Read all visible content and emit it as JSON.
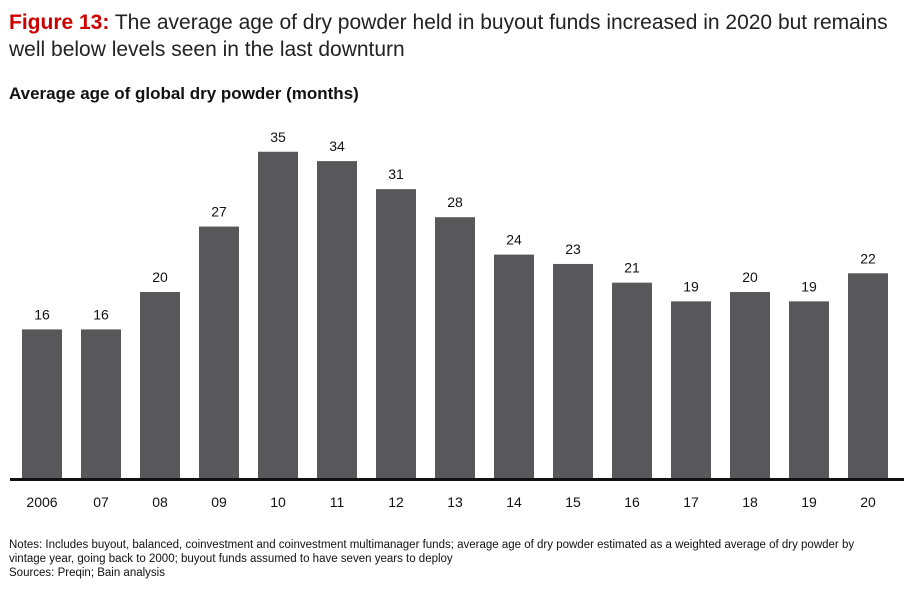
{
  "figure": {
    "prefix": "Figure 13:",
    "title": "The average age of dry powder held in buyout funds increased in 2020 but remains well below levels seen in the last downturn"
  },
  "chart_data": {
    "type": "bar",
    "title": "Average age of global dry powder (months)",
    "categories": [
      "2006",
      "07",
      "08",
      "09",
      "10",
      "11",
      "12",
      "13",
      "14",
      "15",
      "16",
      "17",
      "18",
      "19",
      "20"
    ],
    "values": [
      16,
      16,
      20,
      27,
      35,
      34,
      31,
      28,
      24,
      23,
      21,
      19,
      20,
      19,
      22
    ],
    "xlabel": "",
    "ylabel": "",
    "ylim": [
      0,
      40
    ],
    "grid": false,
    "legend": "none",
    "colors": {
      "bar": "#58585a",
      "axis": "#111111"
    }
  },
  "notes": {
    "line1": "Notes: Includes buyout, balanced, coinvestment and coinvestment multimanager funds; average age of dry powder estimated as a weighted average of dry powder by vintage year, going back to 2000; buyout funds assumed to have seven years to deploy",
    "line2": "Sources: Preqin; Bain analysis"
  }
}
